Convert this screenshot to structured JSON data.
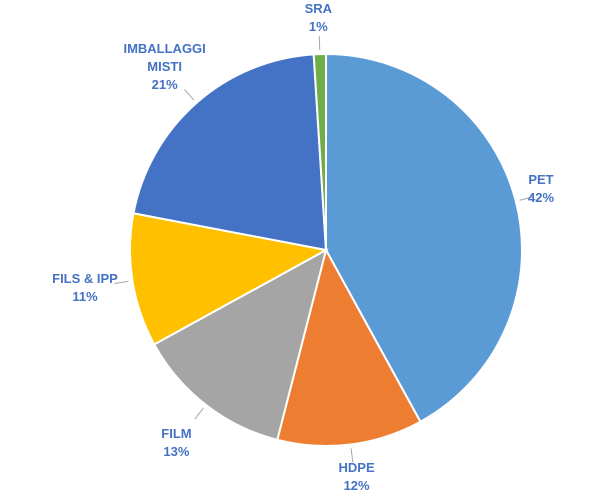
{
  "chart_data": {
    "type": "pie",
    "categories": [
      "PET",
      "HDPE",
      "FILM",
      "FILS & IPP",
      "IMBALLAGGI MISTI",
      "SRA"
    ],
    "values": [
      42,
      12,
      13,
      11,
      21,
      1
    ],
    "value_labels": [
      "42%",
      "12%",
      "13%",
      "11%",
      "21%",
      "1%"
    ],
    "colors": [
      "#5b9bd5",
      "#ed7d31",
      "#a5a5a5",
      "#ffc000",
      "#4472c4",
      "#70ad47"
    ]
  }
}
